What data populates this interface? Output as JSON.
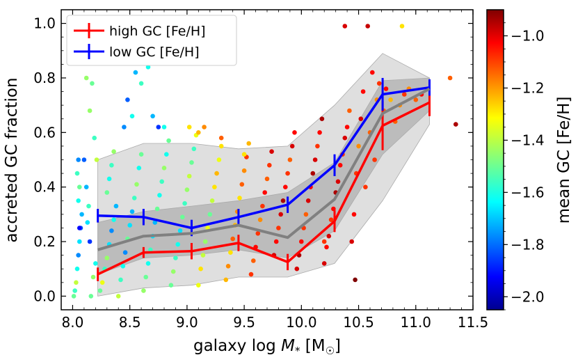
{
  "chart_data": {
    "type": "scatter",
    "xlabel": "galaxy log M* [M☉]",
    "xlabel_parts": {
      "prefix": "galaxy log ",
      "var": "M",
      "sub": "*",
      "unit_open": " [M",
      "sun": "☉",
      "unit_close": "]"
    },
    "ylabel": "accreted GC fraction",
    "xlim": [
      7.9,
      11.5
    ],
    "ylim": [
      -0.05,
      1.05
    ],
    "xticks": [
      8.0,
      8.5,
      9.0,
      9.5,
      10.0,
      10.5,
      11.0,
      11.5
    ],
    "xtick_labels": [
      "8.0",
      "8.5",
      "9.0",
      "9.5",
      "10.0",
      "10.5",
      "11.0",
      "11.5"
    ],
    "yticks": [
      0.0,
      0.2,
      0.4,
      0.6,
      0.8,
      1.0
    ],
    "ytick_labels": [
      "0.0",
      "0.2",
      "0.4",
      "0.6",
      "0.8",
      "1.0"
    ],
    "colorbar": {
      "label": "mean GC [Fe/H]",
      "range": [
        -2.05,
        -0.9
      ],
      "ticks": [
        -1.0,
        -1.2,
        -1.4,
        -1.6,
        -1.8,
        -2.0
      ],
      "tick_labels": [
        "−1.0",
        "−1.2",
        "−1.4",
        "−1.6",
        "−1.8",
        "−2.0"
      ],
      "colormap": "jet"
    },
    "legend": {
      "placement": "top-left",
      "entries": [
        {
          "label": "high GC [Fe/H]",
          "color": "#ff0000"
        },
        {
          "label": "low GC [Fe/H]",
          "color": "#0000ff"
        }
      ]
    },
    "series": [
      {
        "name": "high GC [Fe/H]",
        "color": "#ff0000",
        "x": [
          8.22,
          8.62,
          9.04,
          9.45,
          9.88,
          10.29,
          10.71,
          11.12
        ],
        "y": [
          0.08,
          0.16,
          0.165,
          0.195,
          0.125,
          0.275,
          0.625,
          0.71
        ],
        "err": [
          0.025,
          0.02,
          0.03,
          0.03,
          0.03,
          0.04,
          0.09,
          0.05
        ]
      },
      {
        "name": "low GC [Fe/H]",
        "color": "#0000ff",
        "x": [
          8.22,
          8.62,
          9.04,
          9.45,
          9.88,
          10.29,
          10.71,
          11.12
        ],
        "y": [
          0.295,
          0.29,
          0.25,
          0.29,
          0.335,
          0.48,
          0.74,
          0.765
        ],
        "err": [
          0.025,
          0.03,
          0.03,
          0.03,
          0.03,
          0.04,
          0.06,
          0.03
        ]
      },
      {
        "name": "median",
        "color": "#808080",
        "x": [
          8.22,
          8.62,
          9.04,
          9.45,
          9.88,
          10.29,
          10.71,
          11.12
        ],
        "y": [
          0.17,
          0.22,
          0.23,
          0.26,
          0.215,
          0.355,
          0.67,
          0.76
        ]
      }
    ],
    "bands": [
      {
        "name": "outer",
        "color": "#bfbfbf",
        "x": [
          8.22,
          8.62,
          9.04,
          9.45,
          9.88,
          10.29,
          10.71,
          11.12
        ],
        "low": [
          0.0,
          0.03,
          0.04,
          0.07,
          0.07,
          0.12,
          0.35,
          0.63
        ],
        "high": [
          0.5,
          0.56,
          0.56,
          0.54,
          0.55,
          0.7,
          0.89,
          0.8
        ]
      },
      {
        "name": "inner",
        "color": "#999999",
        "x": [
          8.22,
          8.62,
          9.04,
          9.45,
          9.88,
          10.29,
          10.71,
          11.12
        ],
        "low": [
          0.08,
          0.14,
          0.15,
          0.17,
          0.14,
          0.24,
          0.52,
          0.68
        ],
        "high": [
          0.27,
          0.31,
          0.33,
          0.35,
          0.38,
          0.49,
          0.79,
          0.8
        ]
      }
    ],
    "scatter_points": [
      [
        8.01,
        0.0,
        -1.5
      ],
      [
        8.02,
        0.02,
        -1.55
      ],
      [
        8.03,
        0.05,
        -1.4
      ],
      [
        8.04,
        0.1,
        -1.6
      ],
      [
        8.05,
        0.15,
        -1.75
      ],
      [
        8.06,
        0.2,
        -1.65
      ],
      [
        8.07,
        0.25,
        -1.8
      ],
      [
        8.08,
        0.3,
        -1.7
      ],
      [
        8.05,
        0.35,
        -1.6
      ],
      [
        8.06,
        0.4,
        -1.5
      ],
      [
        8.04,
        0.45,
        -1.55
      ],
      [
        8.05,
        0.5,
        -1.75
      ],
      [
        8.06,
        0.25,
        -1.9
      ],
      [
        8.1,
        0.5,
        -1.8
      ],
      [
        8.12,
        0.4,
        -1.7
      ],
      [
        8.14,
        0.33,
        -1.55
      ],
      [
        8.16,
        0.0,
        -1.5
      ],
      [
        8.18,
        0.07,
        -1.45
      ],
      [
        8.2,
        0.12,
        -1.6
      ],
      [
        8.15,
        0.2,
        -1.85
      ],
      [
        8.13,
        0.27,
        -1.65
      ],
      [
        8.12,
        0.8,
        -1.45
      ],
      [
        8.15,
        0.68,
        -1.45
      ],
      [
        8.17,
        0.78,
        -1.5
      ],
      [
        8.19,
        0.58,
        -1.55
      ],
      [
        8.21,
        0.5,
        -1.4
      ],
      [
        8.24,
        0.02,
        -1.5
      ],
      [
        8.26,
        0.05,
        -1.35
      ],
      [
        8.28,
        0.1,
        -1.55
      ],
      [
        8.3,
        0.14,
        -1.45
      ],
      [
        8.32,
        0.19,
        -1.65
      ],
      [
        8.34,
        0.24,
        -1.75
      ],
      [
        8.36,
        0.28,
        -1.6
      ],
      [
        8.38,
        0.33,
        -1.7
      ],
      [
        8.3,
        0.38,
        -1.5
      ],
      [
        8.32,
        0.43,
        -1.6
      ],
      [
        8.34,
        0.48,
        -1.55
      ],
      [
        8.36,
        0.53,
        -1.45
      ],
      [
        8.4,
        0.0,
        -1.4
      ],
      [
        8.42,
        0.06,
        -1.55
      ],
      [
        8.44,
        0.11,
        -1.6
      ],
      [
        8.46,
        0.16,
        -1.75
      ],
      [
        8.48,
        0.21,
        -1.5
      ],
      [
        8.5,
        0.26,
        -1.65
      ],
      [
        8.52,
        0.31,
        -1.7
      ],
      [
        8.54,
        0.36,
        -1.55
      ],
      [
        8.56,
        0.41,
        -1.45
      ],
      [
        8.58,
        0.47,
        -1.6
      ],
      [
        8.6,
        0.52,
        -1.5
      ],
      [
        8.45,
        0.62,
        -1.75
      ],
      [
        8.48,
        0.72,
        -1.8
      ],
      [
        8.52,
        0.66,
        -1.6
      ],
      [
        8.55,
        0.82,
        -1.7
      ],
      [
        8.6,
        0.78,
        -1.55
      ],
      [
        8.66,
        0.84,
        -1.6
      ],
      [
        8.62,
        0.02,
        -1.45
      ],
      [
        8.64,
        0.07,
        -1.5
      ],
      [
        8.66,
        0.12,
        -1.6
      ],
      [
        8.68,
        0.17,
        -1.55
      ],
      [
        8.7,
        0.22,
        -1.65
      ],
      [
        8.72,
        0.27,
        -1.7
      ],
      [
        8.74,
        0.32,
        -1.5
      ],
      [
        8.76,
        0.37,
        -1.6
      ],
      [
        8.78,
        0.42,
        -1.55
      ],
      [
        8.8,
        0.47,
        -1.45
      ],
      [
        8.82,
        0.52,
        -1.6
      ],
      [
        8.84,
        0.57,
        -1.5
      ],
      [
        8.7,
        0.66,
        -1.7
      ],
      [
        8.75,
        0.62,
        -1.85
      ],
      [
        8.8,
        0.62,
        -1.6
      ],
      [
        8.86,
        0.04,
        -1.5
      ],
      [
        8.88,
        0.09,
        -1.45
      ],
      [
        8.9,
        0.14,
        -1.55
      ],
      [
        8.92,
        0.19,
        -1.6
      ],
      [
        8.94,
        0.24,
        -1.65
      ],
      [
        8.96,
        0.29,
        -1.5
      ],
      [
        8.98,
        0.34,
        -1.55
      ],
      [
        9.0,
        0.39,
        -1.45
      ],
      [
        9.02,
        0.44,
        -1.4
      ],
      [
        9.04,
        0.49,
        -1.5
      ],
      [
        9.06,
        0.54,
        -1.55
      ],
      [
        9.08,
        0.59,
        -1.35
      ],
      [
        9.1,
        0.04,
        -1.35
      ],
      [
        9.12,
        0.1,
        -1.3
      ],
      [
        9.14,
        0.15,
        -1.4
      ],
      [
        9.16,
        0.2,
        -1.45
      ],
      [
        9.18,
        0.25,
        -1.35
      ],
      [
        9.2,
        0.3,
        -1.5
      ],
      [
        9.22,
        0.35,
        -1.4
      ],
      [
        9.24,
        0.4,
        -1.3
      ],
      [
        9.26,
        0.45,
        -1.25
      ],
      [
        9.28,
        0.5,
        -1.35
      ],
      [
        9.3,
        0.55,
        -1.3
      ],
      [
        9.1,
        0.6,
        -1.25
      ],
      [
        9.15,
        0.62,
        -1.2
      ],
      [
        9.02,
        0.62,
        -1.3
      ],
      [
        9.34,
        0.06,
        -1.25
      ],
      [
        9.36,
        0.11,
        -1.2
      ],
      [
        9.38,
        0.16,
        -1.3
      ],
      [
        9.4,
        0.21,
        -1.15
      ],
      [
        9.42,
        0.26,
        -1.25
      ],
      [
        9.44,
        0.31,
        -1.2
      ],
      [
        9.46,
        0.36,
        -1.3
      ],
      [
        9.48,
        0.41,
        -1.15
      ],
      [
        9.5,
        0.46,
        -1.2
      ],
      [
        9.52,
        0.51,
        -1.1
      ],
      [
        9.54,
        0.56,
        -1.25
      ],
      [
        9.3,
        0.58,
        -1.15
      ],
      [
        9.5,
        0.52,
        -1.3
      ],
      [
        9.56,
        0.08,
        -1.1
      ],
      [
        9.58,
        0.13,
        -1.15
      ],
      [
        9.6,
        0.18,
        -1.05
      ],
      [
        9.62,
        0.23,
        -1.1
      ],
      [
        9.64,
        0.28,
        -1.2
      ],
      [
        9.66,
        0.33,
        -1.1
      ],
      [
        9.68,
        0.38,
        -1.05
      ],
      [
        9.7,
        0.43,
        -1.15
      ],
      [
        9.72,
        0.48,
        -1.1
      ],
      [
        9.74,
        0.53,
        -1.0
      ],
      [
        9.76,
        0.15,
        -1.0
      ],
      [
        9.78,
        0.2,
        -1.05
      ],
      [
        9.8,
        0.25,
        -1.1
      ],
      [
        9.82,
        0.3,
        -1.0
      ],
      [
        9.84,
        0.35,
        -0.95
      ],
      [
        9.86,
        0.4,
        -1.05
      ],
      [
        9.88,
        0.45,
        -1.1
      ],
      [
        9.9,
        0.5,
        -1.15
      ],
      [
        9.92,
        0.55,
        -1.0
      ],
      [
        9.94,
        0.6,
        -1.05
      ],
      [
        9.96,
        0.1,
        -1.0
      ],
      [
        9.98,
        0.15,
        -0.95
      ],
      [
        10.0,
        0.2,
        -1.05
      ],
      [
        10.02,
        0.25,
        -1.1
      ],
      [
        10.04,
        0.3,
        -1.15
      ],
      [
        10.06,
        0.35,
        -1.0
      ],
      [
        10.08,
        0.4,
        -1.05
      ],
      [
        10.1,
        0.45,
        -0.95
      ],
      [
        10.12,
        0.5,
        -1.0
      ],
      [
        10.14,
        0.55,
        -1.1
      ],
      [
        10.16,
        0.6,
        -1.05
      ],
      [
        10.18,
        0.65,
        -0.95
      ],
      [
        10.2,
        0.12,
        -1.0
      ],
      [
        10.22,
        0.18,
        -1.05
      ],
      [
        10.24,
        0.22,
        -1.0
      ],
      [
        10.26,
        0.28,
        -1.1
      ],
      [
        10.28,
        0.32,
        -1.05
      ],
      [
        10.3,
        0.38,
        -0.95
      ],
      [
        10.32,
        0.42,
        -1.0
      ],
      [
        10.34,
        0.48,
        -1.05
      ],
      [
        10.36,
        0.52,
        -1.1
      ],
      [
        10.38,
        0.58,
        -1.0
      ],
      [
        10.4,
        0.62,
        -1.05
      ],
      [
        10.42,
        0.68,
        -1.15
      ],
      [
        10.44,
        0.2,
        -1.0
      ],
      [
        10.46,
        0.3,
        -1.05
      ],
      [
        10.48,
        0.45,
        -1.1
      ],
      [
        10.5,
        0.55,
        -1.2
      ],
      [
        10.52,
        0.65,
        -1.0
      ],
      [
        10.54,
        0.75,
        -1.05
      ],
      [
        10.56,
        0.4,
        -1.1
      ],
      [
        10.6,
        0.6,
        -1.15
      ],
      [
        10.62,
        0.82,
        -1.05
      ],
      [
        10.64,
        0.5,
        -1.1
      ],
      [
        10.66,
        0.72,
        -1.2
      ],
      [
        10.68,
        0.78,
        -1.1
      ],
      [
        10.72,
        0.68,
        -1.15
      ],
      [
        10.74,
        0.76,
        -1.05
      ],
      [
        10.78,
        0.72,
        -1.25
      ],
      [
        10.82,
        0.64,
        -1.15
      ],
      [
        10.86,
        0.7,
        -1.2
      ],
      [
        10.9,
        0.74,
        -1.1
      ],
      [
        10.94,
        0.76,
        -1.2
      ],
      [
        11.0,
        0.72,
        -1.15
      ],
      [
        11.05,
        0.74,
        -1.05
      ],
      [
        11.3,
        0.8,
        -1.15
      ],
      [
        11.35,
        0.63,
        -0.95
      ],
      [
        10.38,
        0.99,
        -1.0
      ],
      [
        10.58,
        0.99,
        -0.98
      ],
      [
        10.88,
        0.99,
        -1.3
      ],
      [
        10.47,
        0.06,
        -0.9
      ],
      [
        10.2,
        0.2,
        -1.1
      ]
    ]
  }
}
